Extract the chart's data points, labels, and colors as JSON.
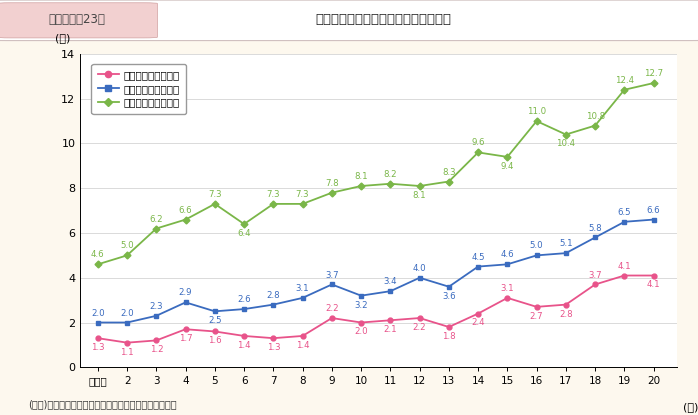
{
  "xlabel_years": [
    "平成元",
    "2",
    "3",
    "4",
    "5",
    "6",
    "7",
    "8",
    "9",
    "10",
    "11",
    "12",
    "13",
    "14",
    "15",
    "16",
    "17",
    "18",
    "19",
    "20"
  ],
  "x_indices": [
    0,
    1,
    2,
    3,
    4,
    5,
    6,
    7,
    8,
    9,
    10,
    11,
    12,
    13,
    14,
    15,
    16,
    17,
    18,
    19
  ],
  "bucho": [
    1.3,
    1.1,
    1.2,
    1.7,
    1.6,
    1.4,
    1.3,
    1.4,
    2.2,
    2.0,
    2.1,
    2.2,
    1.8,
    2.4,
    3.1,
    2.7,
    2.8,
    3.7,
    4.1,
    4.1
  ],
  "kacho": [
    2.0,
    2.0,
    2.3,
    2.9,
    2.5,
    2.6,
    2.8,
    3.1,
    3.7,
    3.2,
    3.4,
    4.0,
    3.6,
    4.5,
    4.6,
    5.0,
    5.1,
    5.8,
    6.5,
    6.6
  ],
  "kakaricho": [
    4.6,
    5.0,
    6.2,
    6.6,
    7.3,
    6.4,
    7.3,
    7.3,
    7.8,
    8.1,
    8.2,
    8.1,
    8.3,
    9.6,
    9.4,
    11.0,
    10.4,
    10.8,
    12.4,
    12.7
  ],
  "bucho_color": "#e8538a",
  "kacho_color": "#3a6bbf",
  "kakaricho_color": "#7ab648",
  "legend_label_bucho": "民間企業の部長相当",
  "legend_label_kacho": "民間企業の課長相当",
  "legend_label_kakaricho": "民間企業の係長相当",
  "ylabel": "(％)",
  "xlabel_suffix": "(年)",
  "ylim": [
    0,
    14
  ],
  "yticks": [
    0,
    2,
    4,
    6,
    8,
    10,
    12,
    14
  ],
  "note": "(備考)厉生労働省「賃金構造基本統計調査」より作成。",
  "header_label": "第１－特－23図",
  "header_title": "役職別管理職に占める女性割合の推移",
  "bg_color": "#fdf8ee",
  "plot_bg": "#ffffff",
  "header_outer_bg": "#ffffff",
  "header_label_bg": "#f2d0d0"
}
